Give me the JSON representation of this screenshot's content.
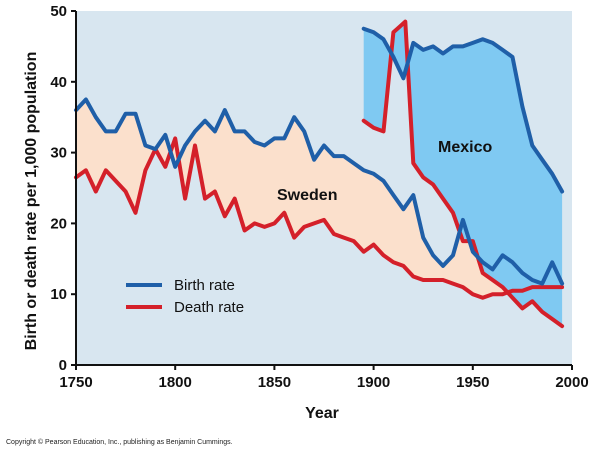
{
  "chart_data": {
    "type": "line",
    "xlabel": "Year",
    "ylabel": "Birth or death rate per 1,000 population",
    "xlim": [
      1750,
      2000
    ],
    "ylim": [
      0,
      50
    ],
    "xticks": [
      1750,
      1800,
      1850,
      1900,
      1950,
      2000
    ],
    "yticks": [
      0,
      10,
      20,
      30,
      40,
      50
    ],
    "grid": false,
    "legend": {
      "placement": "lower-left",
      "entries": [
        {
          "label": "Birth rate",
          "color": "#1f5fa8"
        },
        {
          "label": "Death rate",
          "color": "#d4202a"
        }
      ]
    },
    "region_labels": [
      "Sweden",
      "Mexico"
    ],
    "colors": {
      "plot_bg": "#d8e6f0",
      "birth": "#1f5fa8",
      "death": "#d4202a",
      "sweden_fill": "#fbe0cc",
      "mexico_fill": "#7fc9f2"
    },
    "series": [
      {
        "name": "Sweden birth rate",
        "x": [
          1750,
          1755,
          1760,
          1765,
          1770,
          1775,
          1780,
          1785,
          1790,
          1795,
          1800,
          1805,
          1810,
          1815,
          1820,
          1825,
          1830,
          1835,
          1840,
          1845,
          1850,
          1855,
          1860,
          1865,
          1870,
          1875,
          1880,
          1885,
          1890,
          1895,
          1900,
          1905,
          1910,
          1915,
          1920,
          1925,
          1930,
          1935,
          1940,
          1945,
          1950,
          1955,
          1960,
          1965,
          1970,
          1975,
          1980,
          1985,
          1990,
          1995
        ],
        "values": [
          36.0,
          37.5,
          35.0,
          33.0,
          33.0,
          35.5,
          35.5,
          31.0,
          30.5,
          32.5,
          28.0,
          31.0,
          33.0,
          34.5,
          33.0,
          36.0,
          33.0,
          33.0,
          31.5,
          31.0,
          32.0,
          32.0,
          35.0,
          33.0,
          29.0,
          31.0,
          29.5,
          29.5,
          28.5,
          27.5,
          27.0,
          26.0,
          24.0,
          22.0,
          24.0,
          18.0,
          15.5,
          14.0,
          15.5,
          20.5,
          16.0,
          14.5,
          13.5,
          15.5,
          14.5,
          13.0,
          12.0,
          11.5,
          14.5,
          11.5
        ]
      },
      {
        "name": "Sweden death rate",
        "x": [
          1750,
          1755,
          1760,
          1765,
          1770,
          1775,
          1780,
          1785,
          1790,
          1795,
          1800,
          1805,
          1810,
          1815,
          1820,
          1825,
          1830,
          1835,
          1840,
          1845,
          1850,
          1855,
          1860,
          1865,
          1870,
          1875,
          1880,
          1885,
          1890,
          1895,
          1900,
          1905,
          1910,
          1915,
          1920,
          1925,
          1930,
          1935,
          1940,
          1945,
          1950,
          1955,
          1960,
          1965,
          1970,
          1975,
          1980,
          1985,
          1990,
          1995
        ],
        "values": [
          26.5,
          27.5,
          24.5,
          27.5,
          26.0,
          24.5,
          21.5,
          27.5,
          30.5,
          28.0,
          32.0,
          23.5,
          31.0,
          23.5,
          24.5,
          21.0,
          23.5,
          19.0,
          20.0,
          19.5,
          20.0,
          21.5,
          18.0,
          19.5,
          20.0,
          20.5,
          18.5,
          18.0,
          17.5,
          16.0,
          17.0,
          15.5,
          14.5,
          14.0,
          12.5,
          12.0,
          12.0,
          12.0,
          11.5,
          11.0,
          10.0,
          9.5,
          10.0,
          10.0,
          10.5,
          10.5,
          11.0,
          11.0,
          11.0,
          11.0
        ]
      },
      {
        "name": "Mexico birth rate",
        "x": [
          1895,
          1900,
          1905,
          1910,
          1915,
          1920,
          1925,
          1930,
          1935,
          1940,
          1945,
          1950,
          1955,
          1960,
          1965,
          1970,
          1975,
          1980,
          1985,
          1990,
          1995
        ],
        "values": [
          47.5,
          47.0,
          46.0,
          43.5,
          40.5,
          45.5,
          44.5,
          45.0,
          44.0,
          45.0,
          45.0,
          45.5,
          46.0,
          45.5,
          44.5,
          43.5,
          36.5,
          31.0,
          29.0,
          27.0,
          24.5
        ]
      },
      {
        "name": "Mexico death rate",
        "x": [
          1895,
          1900,
          1905,
          1910,
          1912,
          1916,
          1920,
          1925,
          1930,
          1935,
          1940,
          1945,
          1950,
          1955,
          1960,
          1965,
          1970,
          1975,
          1980,
          1985,
          1990,
          1995
        ],
        "values": [
          34.5,
          33.5,
          33.0,
          47.0,
          47.5,
          48.5,
          28.5,
          26.5,
          25.5,
          23.5,
          21.5,
          17.5,
          17.5,
          13.0,
          12.0,
          11.0,
          9.5,
          8.0,
          9.0,
          7.5,
          6.5,
          5.5
        ]
      }
    ]
  },
  "copyright": "Copyright © Pearson Education, Inc., publishing as Benjamin Cummings."
}
